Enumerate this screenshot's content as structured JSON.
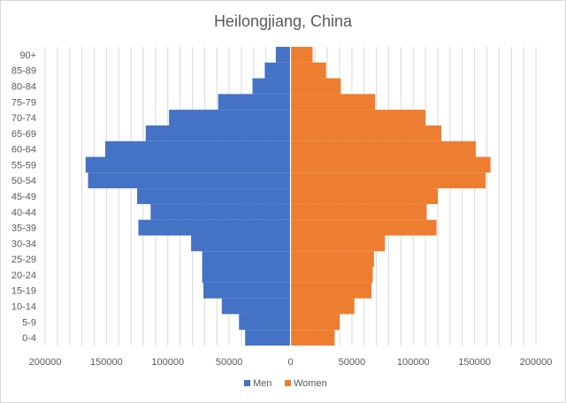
{
  "chart_data": {
    "type": "bar",
    "orientation": "horizontal",
    "title": "Heilongjiang, China",
    "categories": [
      "0-4",
      "5-9",
      "10-14",
      "15-19",
      "20-24",
      "25-29",
      "30-34",
      "35-39",
      "40-44",
      "45-49",
      "50-54",
      "55-59",
      "60-64",
      "65-69",
      "70-74",
      "75-79",
      "80-84",
      "85-89",
      "90+"
    ],
    "series": [
      {
        "name": "Men",
        "color": "#4472C4",
        "values": [
          37000,
          42000,
          56000,
          71000,
          72000,
          72000,
          81000,
          124000,
          114000,
          125000,
          165000,
          167000,
          151000,
          118000,
          99000,
          59000,
          31000,
          21000,
          12000
        ]
      },
      {
        "name": "Women",
        "color": "#ED7D31",
        "values": [
          36000,
          40000,
          52000,
          66000,
          67000,
          68000,
          77000,
          119000,
          111000,
          120000,
          159000,
          163000,
          151000,
          123000,
          110000,
          69000,
          41000,
          29000,
          18000
        ]
      }
    ],
    "xlim": [
      -200000,
      200000
    ],
    "x_ticks": [
      "200000",
      "150000",
      "100000",
      "50000",
      "0",
      "50000",
      "100000",
      "150000",
      "200000"
    ],
    "grid": true,
    "legend": "bottom"
  }
}
